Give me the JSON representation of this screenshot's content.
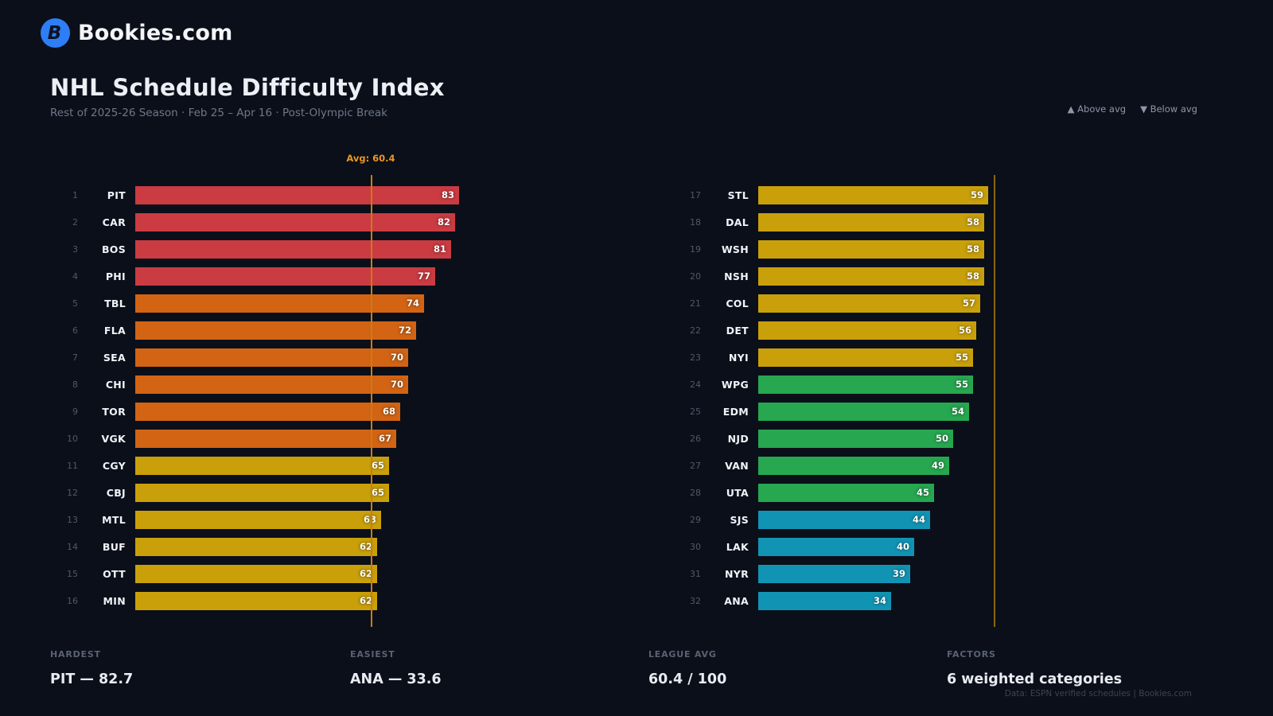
{
  "header": {
    "logo_letter": "B",
    "brand": "Bookies.com",
    "title": "NHL Schedule Difficulty Index",
    "subtitle": "Rest of 2025-26 Season · Feb 25 – Apr 16 · Post-Olympic Break",
    "legend": {
      "above": "▲ Above avg",
      "below": "▼ Below avg"
    }
  },
  "chart_data": {
    "type": "bar",
    "orientation": "horizontal",
    "title": "NHL Schedule Difficulty Index",
    "xlim": [
      0,
      100
    ],
    "league_avg": 60.4,
    "avg_label": "Avg: 60.4",
    "colors": {
      "red": "#cb3b42",
      "orange": "#d26414",
      "gold": "#c9a00a",
      "green": "#26a750",
      "teal": "#1194b4",
      "avg_line_left": "#c87d15",
      "avg_line_right": "#8a650f",
      "avg_label": "#ec9620"
    },
    "teams": [
      {
        "rank": 1,
        "team": "PIT",
        "value": 83,
        "tier": "red"
      },
      {
        "rank": 2,
        "team": "CAR",
        "value": 82,
        "tier": "red"
      },
      {
        "rank": 3,
        "team": "BOS",
        "value": 81,
        "tier": "red"
      },
      {
        "rank": 4,
        "team": "PHI",
        "value": 77,
        "tier": "red"
      },
      {
        "rank": 5,
        "team": "TBL",
        "value": 74,
        "tier": "orange"
      },
      {
        "rank": 6,
        "team": "FLA",
        "value": 72,
        "tier": "orange"
      },
      {
        "rank": 7,
        "team": "SEA",
        "value": 70,
        "tier": "orange"
      },
      {
        "rank": 8,
        "team": "CHI",
        "value": 70,
        "tier": "orange"
      },
      {
        "rank": 9,
        "team": "TOR",
        "value": 68,
        "tier": "orange"
      },
      {
        "rank": 10,
        "team": "VGK",
        "value": 67,
        "tier": "orange"
      },
      {
        "rank": 11,
        "team": "CGY",
        "value": 65,
        "tier": "gold"
      },
      {
        "rank": 12,
        "team": "CBJ",
        "value": 65,
        "tier": "gold"
      },
      {
        "rank": 13,
        "team": "MTL",
        "value": 63,
        "tier": "gold"
      },
      {
        "rank": 14,
        "team": "BUF",
        "value": 62,
        "tier": "gold"
      },
      {
        "rank": 15,
        "team": "OTT",
        "value": 62,
        "tier": "gold"
      },
      {
        "rank": 16,
        "team": "MIN",
        "value": 62,
        "tier": "gold"
      },
      {
        "rank": 17,
        "team": "STL",
        "value": 59,
        "tier": "gold"
      },
      {
        "rank": 18,
        "team": "DAL",
        "value": 58,
        "tier": "gold"
      },
      {
        "rank": 19,
        "team": "WSH",
        "value": 58,
        "tier": "gold"
      },
      {
        "rank": 20,
        "team": "NSH",
        "value": 58,
        "tier": "gold"
      },
      {
        "rank": 21,
        "team": "COL",
        "value": 57,
        "tier": "gold"
      },
      {
        "rank": 22,
        "team": "DET",
        "value": 56,
        "tier": "gold"
      },
      {
        "rank": 23,
        "team": "NYI",
        "value": 55,
        "tier": "gold"
      },
      {
        "rank": 24,
        "team": "WPG",
        "value": 55,
        "tier": "green"
      },
      {
        "rank": 25,
        "team": "EDM",
        "value": 54,
        "tier": "green"
      },
      {
        "rank": 26,
        "team": "NJD",
        "value": 50,
        "tier": "green"
      },
      {
        "rank": 27,
        "team": "VAN",
        "value": 49,
        "tier": "green"
      },
      {
        "rank": 28,
        "team": "UTA",
        "value": 45,
        "tier": "green"
      },
      {
        "rank": 29,
        "team": "SJS",
        "value": 44,
        "tier": "teal"
      },
      {
        "rank": 30,
        "team": "LAK",
        "value": 40,
        "tier": "teal"
      },
      {
        "rank": 31,
        "team": "NYR",
        "value": 39,
        "tier": "teal"
      },
      {
        "rank": 32,
        "team": "ANA",
        "value": 34,
        "tier": "teal"
      }
    ]
  },
  "footer": {
    "stats": [
      {
        "label": "HARDEST",
        "value": "PIT — 82.7"
      },
      {
        "label": "EASIEST",
        "value": "ANA — 33.6"
      },
      {
        "label": "LEAGUE AVG",
        "value": "60.4 / 100"
      },
      {
        "label": "FACTORS",
        "value": "6 weighted categories"
      }
    ],
    "source": "Data: ESPN verified schedules | Bookies.com"
  }
}
